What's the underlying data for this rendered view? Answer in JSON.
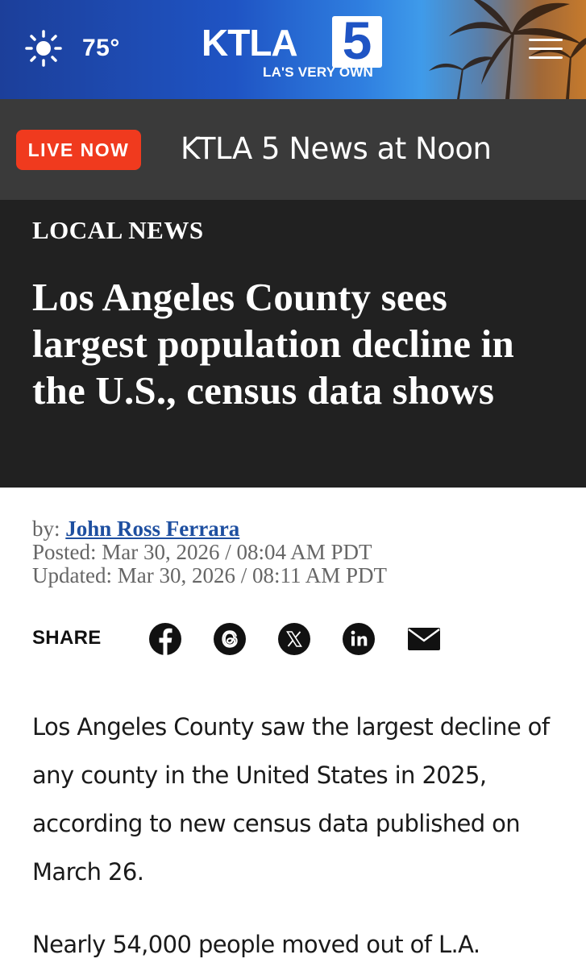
{
  "header": {
    "weather_icon": "sun-icon",
    "temperature": "75°",
    "logo_text": "KTLA",
    "logo_number": "5",
    "logo_tagline": "LA'S VERY OWN",
    "menu_icon": "hamburger-menu-icon"
  },
  "live_bar": {
    "badge": "LIVE NOW",
    "program": "KTLA 5 News at Noon"
  },
  "article": {
    "category": "LOCAL NEWS",
    "headline": "Los Angeles County sees largest population decline in the U.S., census data shows",
    "byline_prefix": "by: ",
    "author": "John Ross Ferrara",
    "posted": "Posted: Mar 30, 2026 / 08:04 AM PDT",
    "updated": "Updated: Mar 30, 2026 / 08:11 AM PDT",
    "paragraphs": [
      "Los Angeles County saw the largest decline of any county in the United States in 2025, according to new census data published on March 26.",
      "Nearly 54,000 people moved out of L.A."
    ]
  },
  "share": {
    "label": "SHARE",
    "icons": [
      "facebook-icon",
      "threads-icon",
      "x-icon",
      "linkedin-icon",
      "email-icon"
    ]
  },
  "colors": {
    "live_badge": "#f03a1e",
    "live_bar_bg": "#3a3a3a",
    "headline_bg": "#212121",
    "author_link": "#1e4fa0",
    "header_blue": "#1f54c4"
  }
}
